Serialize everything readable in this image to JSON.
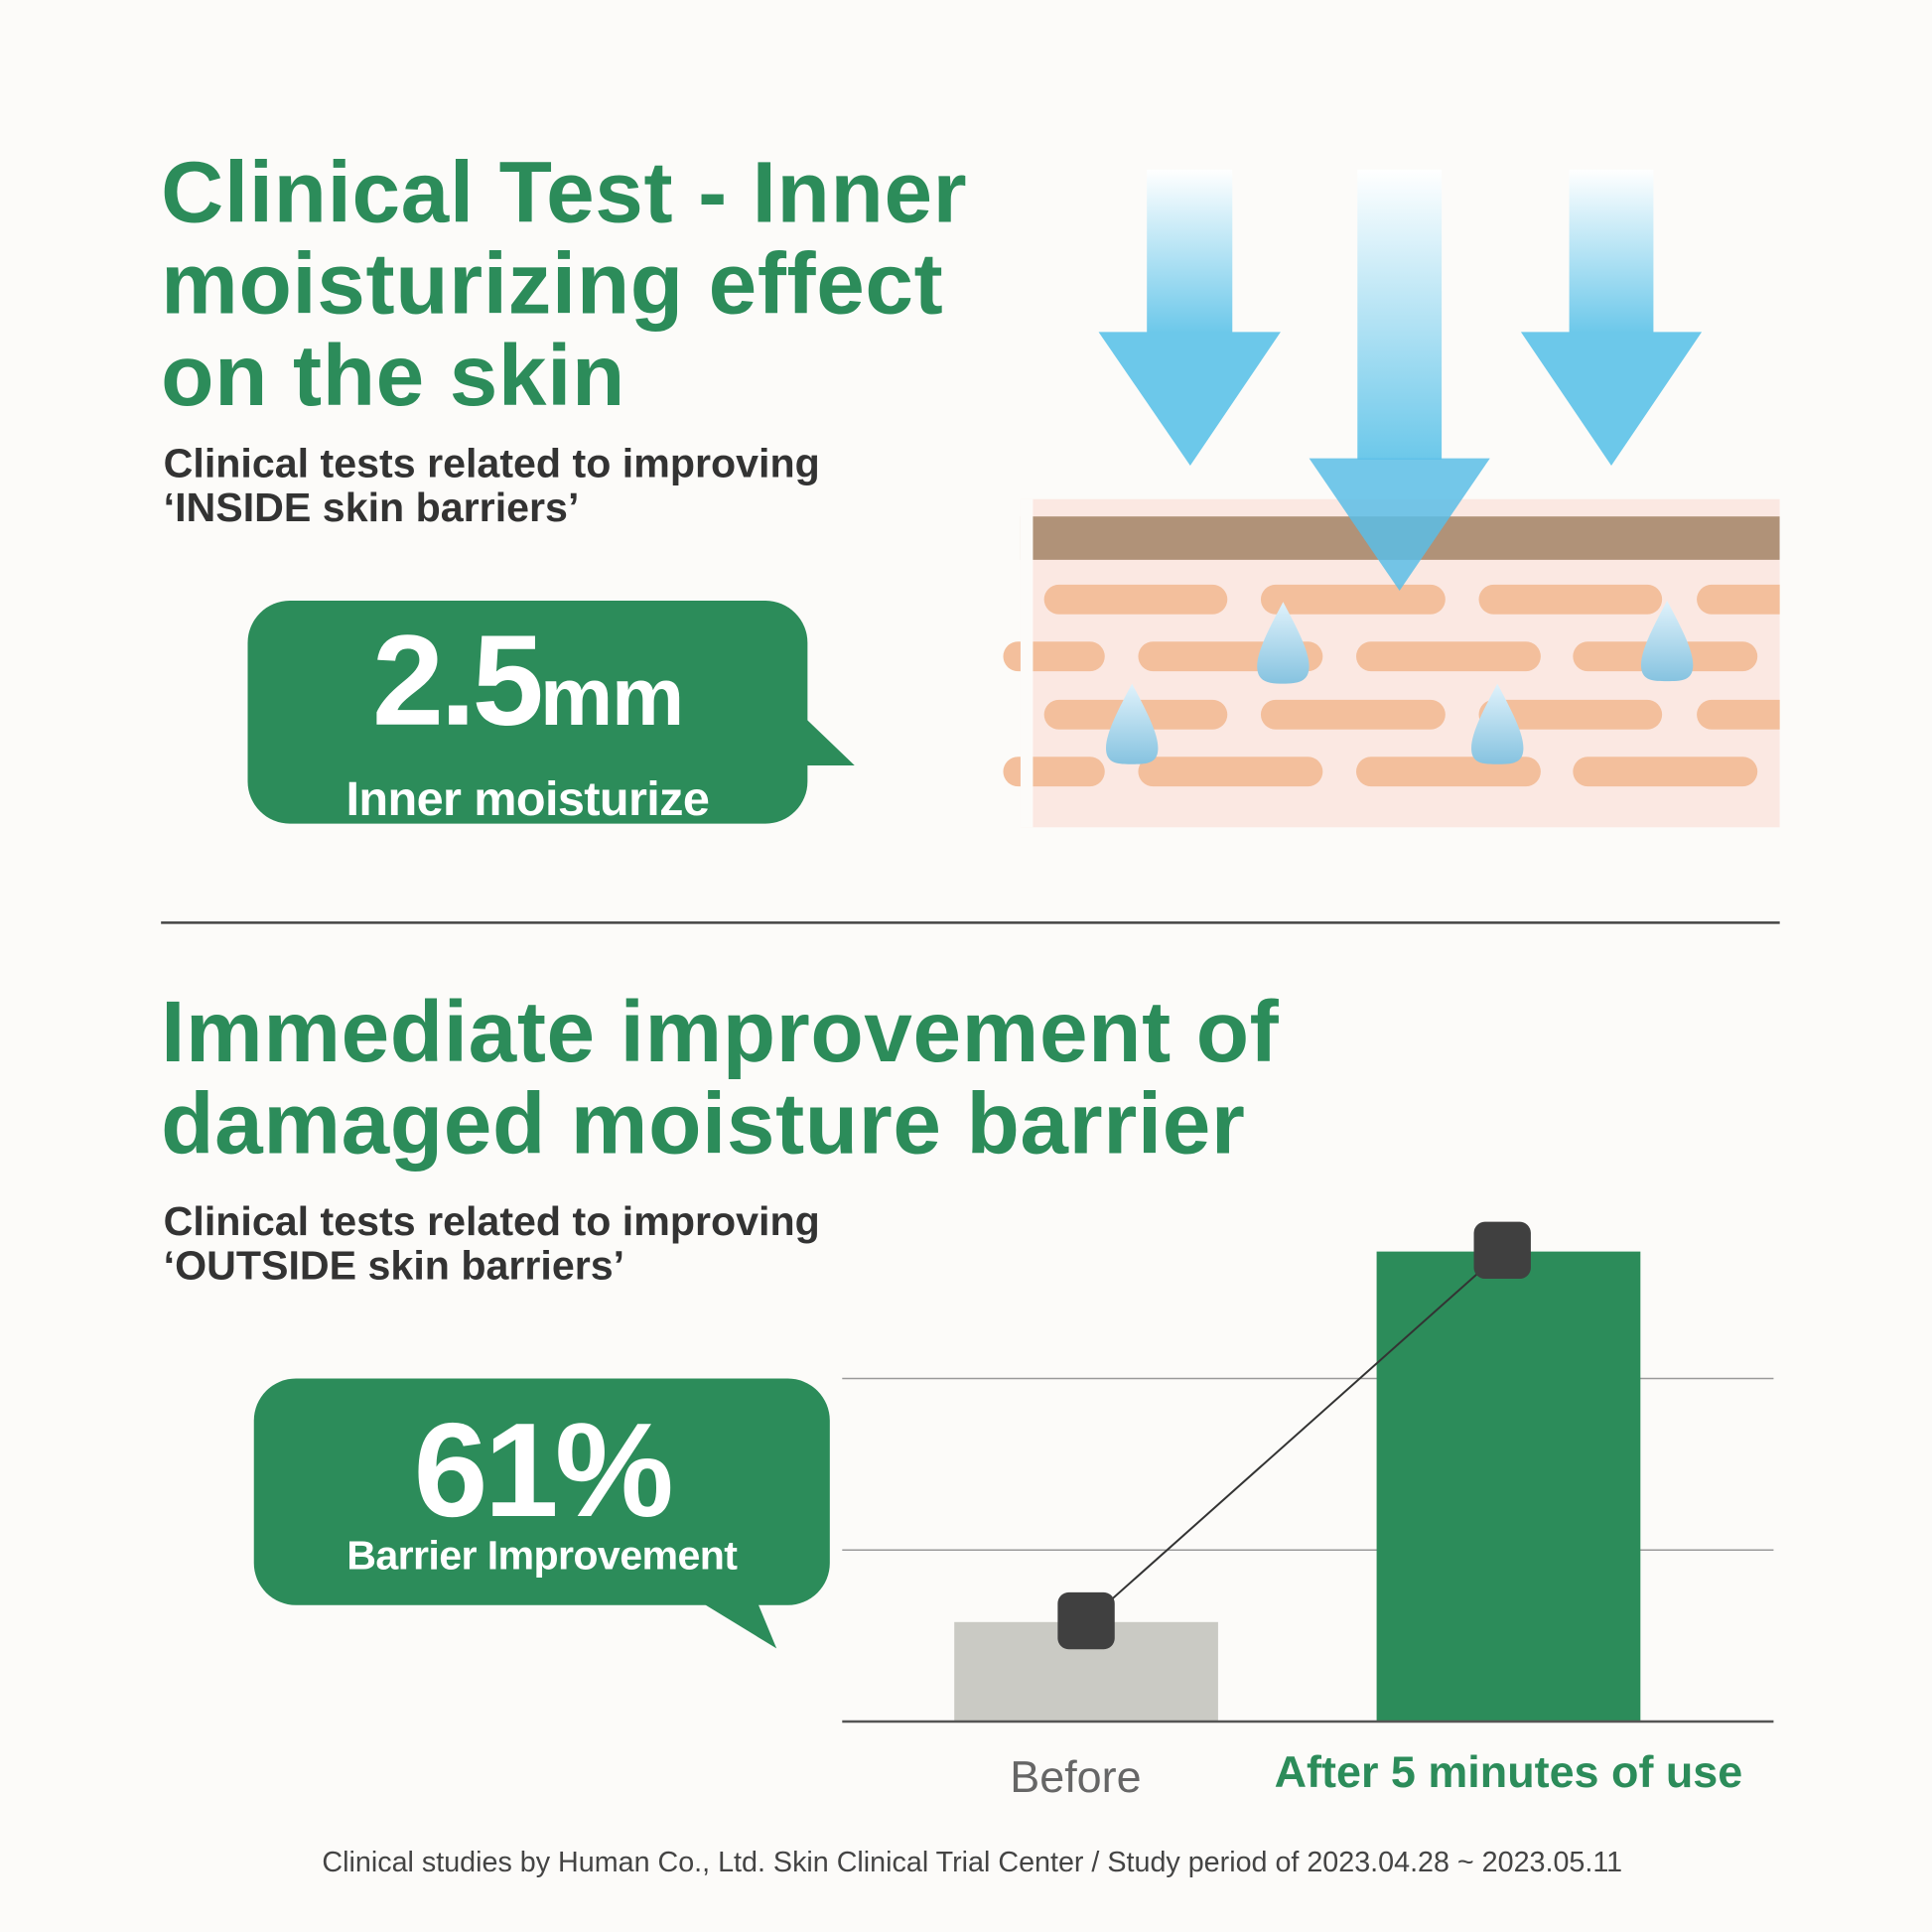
{
  "section1": {
    "title_lines": [
      "Clinical Test - Inner",
      "moisturizing effect",
      "on the skin"
    ],
    "subtitle_lines": [
      "Clinical tests related to improving",
      "‘INSIDE skin barriers’"
    ],
    "stat_value": "2.5",
    "stat_unit": "mm",
    "stat_label": "Inner moisturize"
  },
  "section2": {
    "title_lines": [
      "Immediate improvement of",
      "damaged moisture barrier"
    ],
    "subtitle_lines": [
      "Clinical tests related to improving",
      "‘OUTSIDE skin barriers’"
    ],
    "stat_value": "61%",
    "stat_label": "Barrier Improvement"
  },
  "chart_data": {
    "type": "bar",
    "categories": [
      "Before",
      "After 5 minutes of use"
    ],
    "values": [
      0.58,
      2.74
    ],
    "ylim": [
      0,
      3
    ],
    "grid": true,
    "colors": [
      "#cacac4",
      "#2c8c5a"
    ],
    "connector_line": true,
    "title": "",
    "xlabel": "",
    "ylabel": ""
  },
  "footer": "Clinical studies by Human Co., Ltd. Skin Clinical Trial Center / Study period of 2023.04.28 ~ 2023.05.11",
  "colors": {
    "brand_green": "#2c8c5a",
    "arrow_blue": "#6cc8ea",
    "skin_top": "#b09278",
    "skin_cell": "#f3bf9c",
    "skin_bg": "#fbe8e2"
  }
}
